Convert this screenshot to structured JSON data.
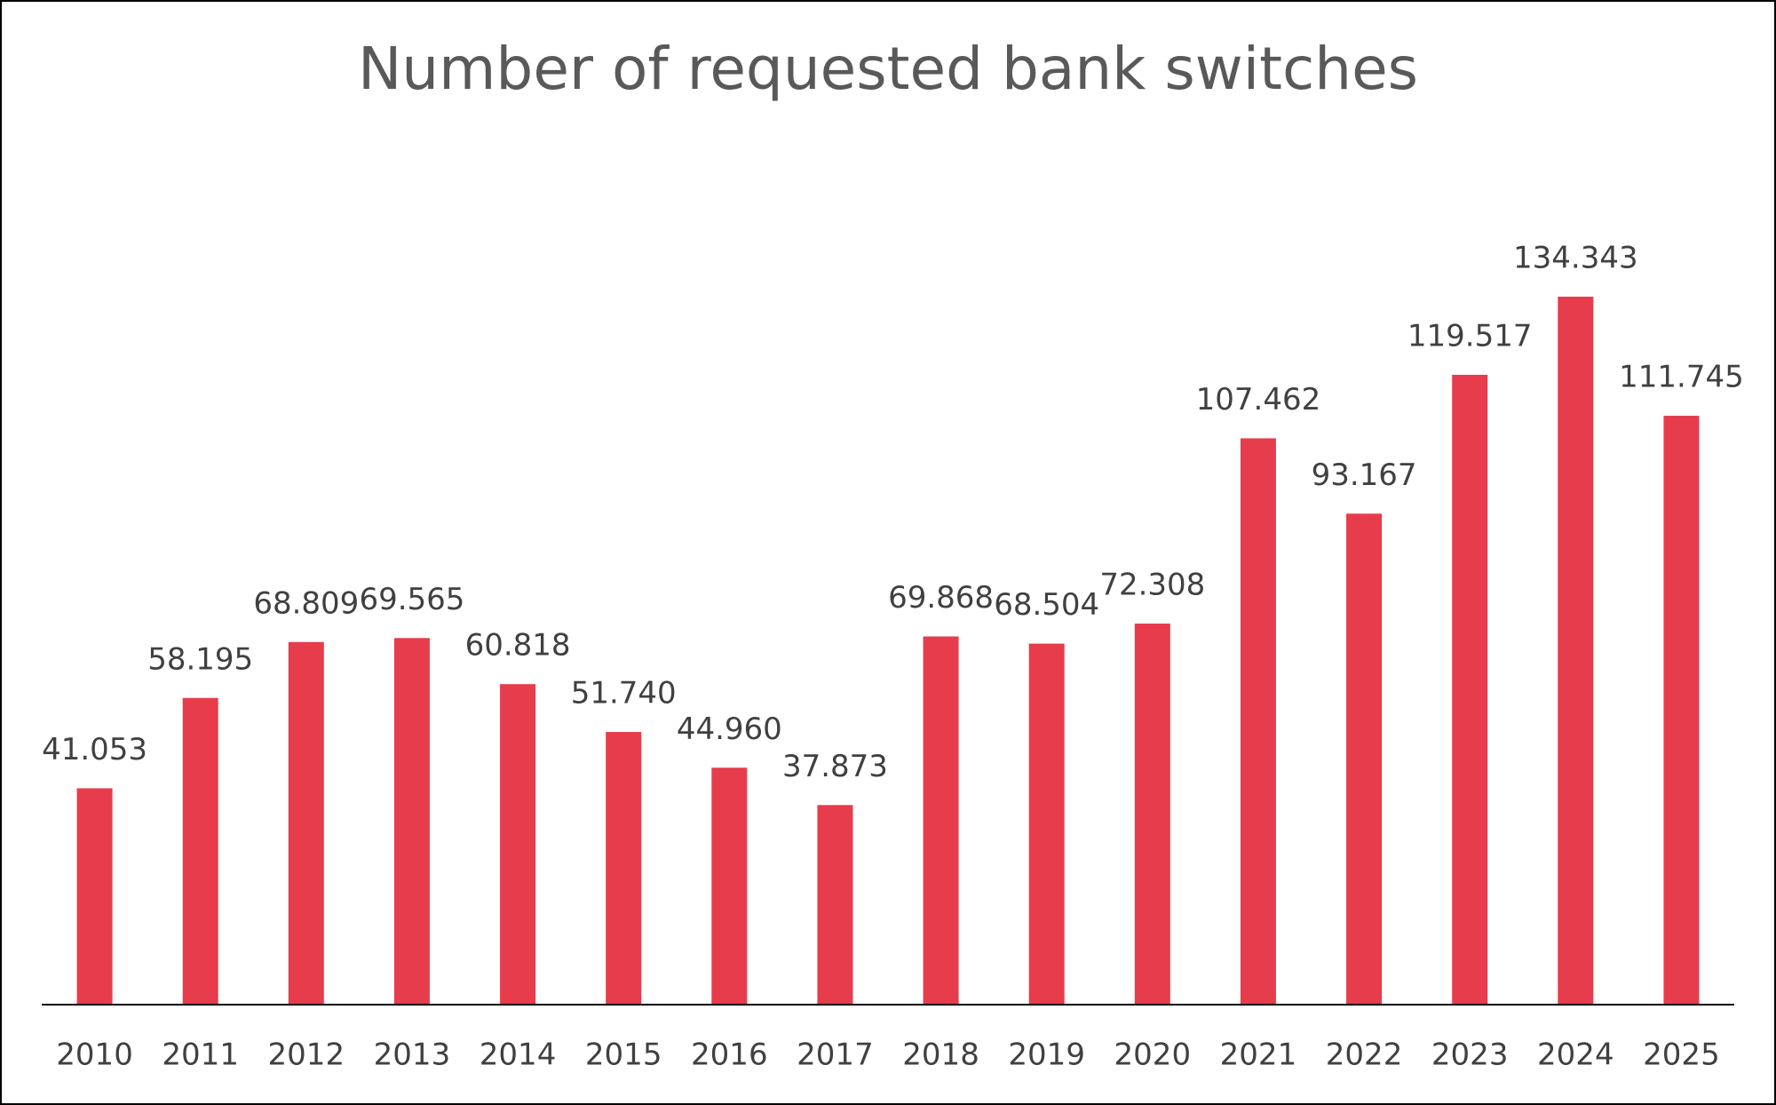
{
  "chart_data": {
    "type": "bar",
    "title": "Number of requested bank switches",
    "categories": [
      "2010",
      "2011",
      "2012",
      "2013",
      "2014",
      "2015",
      "2016",
      "2017",
      "2018",
      "2019",
      "2020",
      "2021",
      "2022",
      "2023",
      "2024",
      "2025"
    ],
    "values": [
      41053,
      58195,
      68809,
      69565,
      60818,
      51740,
      44960,
      37873,
      69868,
      68504,
      72308,
      107462,
      93167,
      119517,
      134343,
      111745
    ],
    "value_labels": [
      "41.053",
      "58.195",
      "68.809",
      "69.565",
      "60.818",
      "51.740",
      "44.960",
      "37.873",
      "69.868",
      "68.504",
      "72.308",
      "107.462",
      "93.167",
      "119.517",
      "134.343",
      "111.745"
    ],
    "color": "#e63c4b"
  }
}
